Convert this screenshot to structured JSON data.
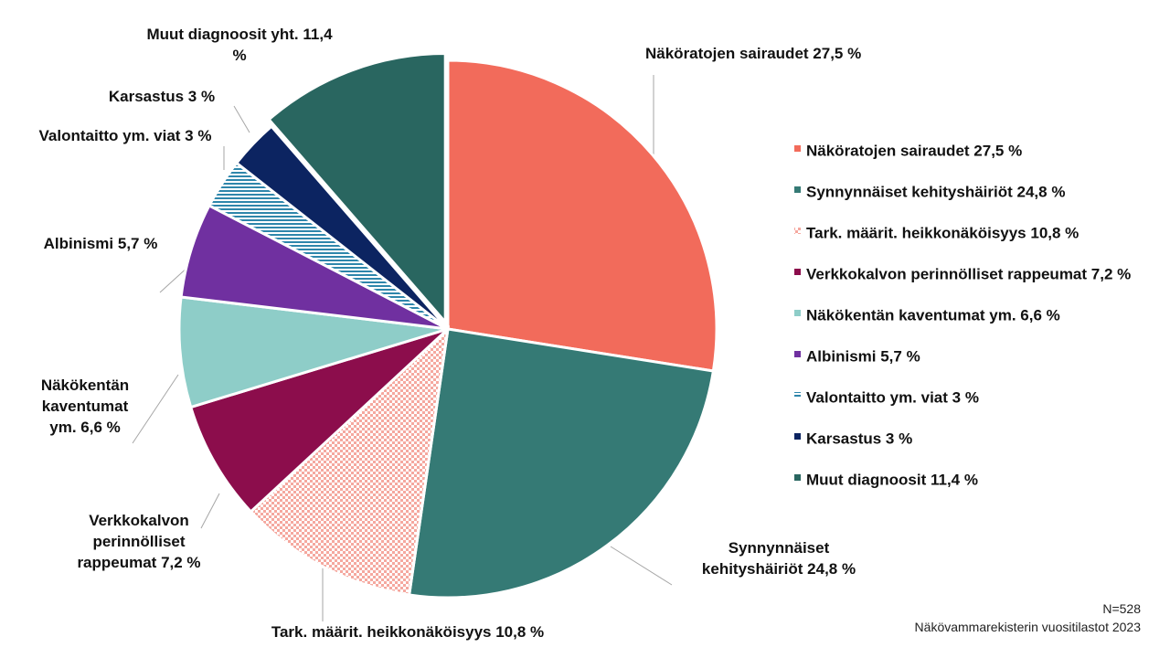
{
  "chart_data": {
    "type": "pie",
    "title": "",
    "unit": "%",
    "slices": [
      {
        "name": "Näköratojen sairaudet",
        "value": 27.5,
        "color": "#f26b5b",
        "pattern": "solid",
        "label": [
          "Näköratojen sairaudet 27,5 %"
        ],
        "legend": "Näköratojen sairaudet 27,5 %"
      },
      {
        "name": "Synnynnäiset kehityshäiriöt",
        "value": 24.8,
        "color": "#357a75",
        "pattern": "solid",
        "label": [
          "Synnynnäiset",
          "kehityshäiriöt 24,8 %"
        ],
        "legend": "Synnynnäiset kehityshäiriöt 24,8 %"
      },
      {
        "name": "Tark. määrit. heikkonäköisyys",
        "value": 10.8,
        "color": "#f5a89f",
        "pattern": "checker",
        "label": [
          "Tark. määrit. heikkonäköisyys 10,8 %"
        ],
        "legend": "Tark. määrit. heikkonäköisyys 10,8 %"
      },
      {
        "name": "Verkkokalvon perinnölliset rappeumat",
        "value": 7.2,
        "color": "#8c0d4c",
        "pattern": "solid",
        "label": [
          "Verkkokalvon",
          "perinnölliset",
          "rappeumat 7,2 %"
        ],
        "legend": "Verkkokalvon perinnölliset rappeumat 7,2 %"
      },
      {
        "name": "Näkökentän kaventumat ym.",
        "value": 6.6,
        "color": "#8ecdc8",
        "pattern": "solid",
        "label": [
          "Näkökentän",
          "kaventumat",
          "ym. 6,6 %"
        ],
        "legend": "Näkökentän kaventumat ym. 6,6 %"
      },
      {
        "name": "Albinismi",
        "value": 5.7,
        "color": "#7030a0",
        "pattern": "solid",
        "label": [
          "Albinismi 5,7 %"
        ],
        "legend": "Albinismi 5,7 %"
      },
      {
        "name": "Valontaitto ym. viat",
        "value": 3.0,
        "color": "#2e86ab",
        "pattern": "hstripe",
        "label": [
          "Valontaitto ym. viat 3 %"
        ],
        "legend": "Valontaitto ym. viat 3 %"
      },
      {
        "name": "Karsastus",
        "value": 3.0,
        "color": "#0c2461",
        "pattern": "solid",
        "label": [
          "Karsastus 3 %"
        ],
        "legend": "Karsastus 3 %"
      },
      {
        "name": "Muut diagnoosit",
        "value": 11.4,
        "color": "#296660",
        "pattern": "solid",
        "label": [
          "Muut diagnoosit yht. 11,4",
          "%"
        ],
        "legend": "Muut diagnoosit 11,4 %"
      }
    ]
  },
  "footer": {
    "n": "N=528",
    "source": "Näkövammarekisterin vuositilastot 2023"
  }
}
